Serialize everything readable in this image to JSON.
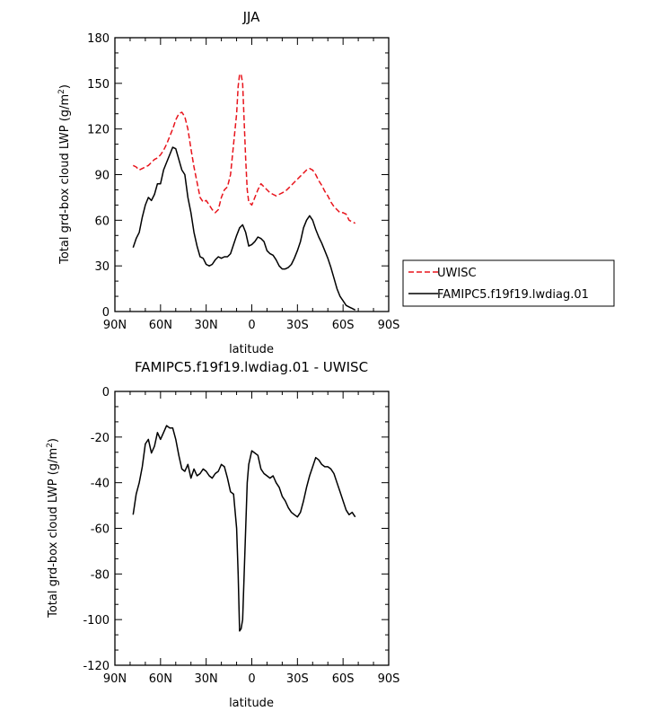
{
  "chart_data": [
    {
      "type": "line",
      "title": "JJA",
      "xlabel": "latitude",
      "ylabel": "Total grd-box cloud LWP (g/m²)",
      "xlim": [
        90,
        -90
      ],
      "ylim": [
        0,
        180
      ],
      "xticks": [
        {
          "value": 90,
          "label": "90N"
        },
        {
          "value": 60,
          "label": "60N"
        },
        {
          "value": 30,
          "label": "30N"
        },
        {
          "value": 0,
          "label": "0"
        },
        {
          "value": -30,
          "label": "30S"
        },
        {
          "value": -60,
          "label": "60S"
        },
        {
          "value": -90,
          "label": "90S"
        }
      ],
      "yticks": [
        {
          "value": 0,
          "label": "0"
        },
        {
          "value": 30,
          "label": "30"
        },
        {
          "value": 60,
          "label": "60"
        },
        {
          "value": 90,
          "label": "90"
        },
        {
          "value": 120,
          "label": "120"
        },
        {
          "value": 150,
          "label": "150"
        },
        {
          "value": 180,
          "label": "180"
        }
      ],
      "legend_position": "right",
      "series": [
        {
          "name": "UWISC",
          "color": "#e8141c",
          "dash": "dashed",
          "x": [
            78,
            76,
            74,
            72,
            70,
            68,
            66,
            64,
            62,
            60,
            58,
            56,
            54,
            52,
            50,
            48,
            46,
            44,
            42,
            40,
            38,
            36,
            34,
            32,
            30,
            28,
            26,
            24,
            22,
            20,
            18,
            16,
            14,
            12,
            10,
            9,
            8,
            7,
            6,
            5,
            4,
            3,
            2,
            0,
            -2,
            -4,
            -6,
            -8,
            -10,
            -12,
            -14,
            -16,
            -18,
            -20,
            -22,
            -24,
            -26,
            -28,
            -30,
            -32,
            -34,
            -36,
            -38,
            -40,
            -42,
            -44,
            -46,
            -48,
            -50,
            -52,
            -54,
            -56,
            -58,
            -60,
            -62,
            -64,
            -66,
            -68
          ],
          "y": [
            96,
            95,
            93,
            94,
            95,
            96,
            98,
            100,
            101,
            103,
            106,
            110,
            115,
            120,
            126,
            130,
            131,
            128,
            120,
            107,
            95,
            85,
            75,
            72,
            73,
            70,
            67,
            65,
            67,
            75,
            80,
            82,
            90,
            110,
            130,
            148,
            156,
            156,
            150,
            125,
            100,
            80,
            72,
            70,
            75,
            80,
            84,
            82,
            80,
            78,
            77,
            76,
            77,
            78,
            79,
            81,
            83,
            85,
            87,
            89,
            91,
            93,
            94,
            93,
            90,
            86,
            83,
            79,
            76,
            72,
            69,
            67,
            65,
            65,
            64,
            60,
            59,
            58
          ]
        },
        {
          "name": "FAMIPC5.f19f19.lwdiag.01",
          "color": "#000000",
          "dash": "solid",
          "x": [
            78,
            76,
            74,
            72,
            70,
            68,
            66,
            64,
            62,
            60,
            58,
            56,
            54,
            52,
            50,
            48,
            46,
            44,
            42,
            40,
            38,
            36,
            34,
            32,
            30,
            28,
            26,
            24,
            22,
            20,
            18,
            16,
            14,
            12,
            10,
            8,
            6,
            4,
            2,
            0,
            -2,
            -4,
            -6,
            -8,
            -10,
            -12,
            -14,
            -16,
            -18,
            -20,
            -22,
            -24,
            -26,
            -28,
            -30,
            -32,
            -34,
            -36,
            -38,
            -40,
            -42,
            -44,
            -46,
            -48,
            -50,
            -52,
            -54,
            -56,
            -58,
            -60,
            -62,
            -64,
            -66,
            -68
          ],
          "y": [
            42,
            48,
            52,
            62,
            70,
            75,
            73,
            77,
            84,
            84,
            93,
            98,
            103,
            108,
            107,
            100,
            93,
            90,
            75,
            65,
            52,
            43,
            36,
            35,
            31,
            30,
            31,
            34,
            36,
            35,
            36,
            36,
            38,
            44,
            50,
            55,
            57,
            52,
            43,
            44,
            46,
            49,
            48,
            46,
            40,
            38,
            37,
            34,
            30,
            28,
            28,
            29,
            31,
            35,
            40,
            46,
            55,
            60,
            63,
            60,
            54,
            49,
            45,
            40,
            35,
            29,
            22,
            15,
            10,
            7,
            4,
            3,
            2,
            1
          ]
        }
      ]
    },
    {
      "type": "line",
      "title": "FAMIPC5.f19f19.lwdiag.01 - UWISC",
      "xlabel": "latitude",
      "ylabel": "Total grd-box cloud LWP (g/m²)",
      "xlim": [
        90,
        -90
      ],
      "ylim": [
        -120,
        0
      ],
      "xticks": [
        {
          "value": 90,
          "label": "90N"
        },
        {
          "value": 60,
          "label": "60N"
        },
        {
          "value": 30,
          "label": "30N"
        },
        {
          "value": 0,
          "label": "0"
        },
        {
          "value": -30,
          "label": "30S"
        },
        {
          "value": -60,
          "label": "60S"
        },
        {
          "value": -90,
          "label": "90S"
        }
      ],
      "yticks": [
        {
          "value": 0,
          "label": "0"
        },
        {
          "value": -20,
          "label": "-20"
        },
        {
          "value": -40,
          "label": "-40"
        },
        {
          "value": -60,
          "label": "-60"
        },
        {
          "value": -80,
          "label": "-80"
        },
        {
          "value": -100,
          "label": "-100"
        },
        {
          "value": -120,
          "label": "-120"
        }
      ],
      "series": [
        {
          "color": "#000000",
          "dash": "solid",
          "x": [
            78,
            76,
            74,
            72,
            70,
            68,
            66,
            64,
            62,
            60,
            58,
            56,
            54,
            52,
            50,
            48,
            46,
            44,
            42,
            40,
            38,
            36,
            34,
            32,
            30,
            28,
            26,
            24,
            22,
            20,
            18,
            16,
            14,
            12,
            10,
            9,
            8,
            7,
            6,
            5,
            4,
            3,
            2,
            0,
            -2,
            -4,
            -6,
            -8,
            -10,
            -12,
            -14,
            -16,
            -18,
            -20,
            -22,
            -24,
            -26,
            -28,
            -30,
            -32,
            -34,
            -36,
            -38,
            -40,
            -42,
            -44,
            -46,
            -48,
            -50,
            -52,
            -54,
            -56,
            -58,
            -60,
            -62,
            -64,
            -66,
            -68
          ],
          "y": [
            -54,
            -45,
            -40,
            -33,
            -23,
            -21,
            -27,
            -24,
            -18,
            -21,
            -18,
            -15,
            -16,
            -16,
            -21,
            -28,
            -34,
            -35,
            -32,
            -38,
            -34,
            -37,
            -36,
            -34,
            -35,
            -37,
            -38,
            -36,
            -35,
            -32,
            -33,
            -38,
            -44,
            -45,
            -60,
            -80,
            -105,
            -104,
            -100,
            -80,
            -60,
            -40,
            -32,
            -26,
            -27,
            -28,
            -34,
            -36,
            -37,
            -38,
            -37,
            -40,
            -42,
            -46,
            -48,
            -51,
            -53,
            -54,
            -55,
            -53,
            -48,
            -42,
            -37,
            -33,
            -29,
            -30,
            -32,
            -33,
            -33,
            -34,
            -36,
            -40,
            -44,
            -48,
            -52,
            -54,
            -53,
            -55
          ]
        }
      ]
    }
  ]
}
